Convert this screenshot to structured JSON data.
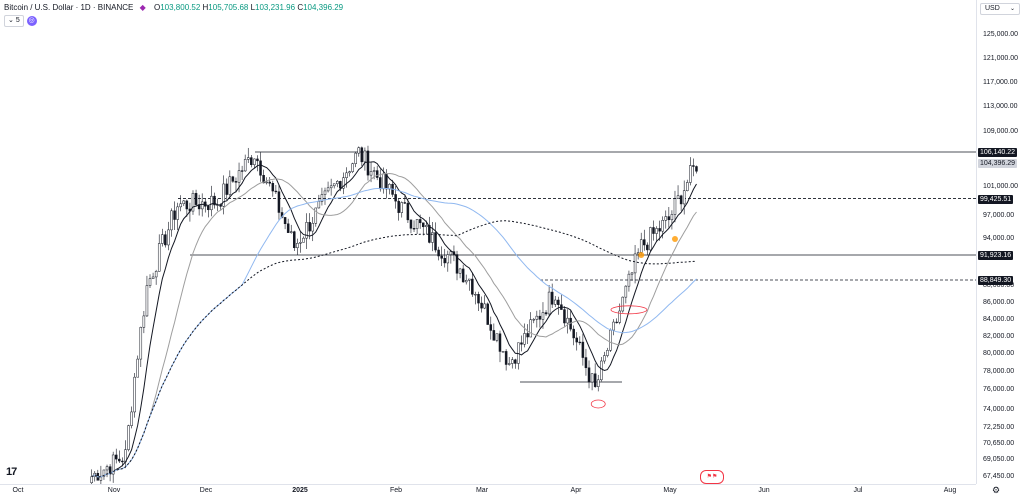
{
  "header": {
    "title": "Bitcoin / U.S. Dollar · 1D · BINANCE",
    "ohlc": [
      {
        "label": "O",
        "value": "103,800.52"
      },
      {
        "label": "H",
        "value": "105,705.68"
      },
      {
        "label": "L",
        "value": "103,231.96"
      },
      {
        "label": "C",
        "value": "104,396.29"
      }
    ],
    "indicator_count": "5"
  },
  "currency_button": "USD",
  "price_axis": {
    "labels": [
      "125,000.00",
      "121,000.00",
      "117,000.00",
      "113,000.00",
      "109,000.00",
      "101,000.00",
      "97,000.00",
      "94,000.00",
      "88,000.00",
      "86,000.00",
      "84,000.00",
      "82,000.00",
      "80,000.00",
      "78,000.00",
      "76,000.00",
      "74,000.00",
      "72,250.00",
      "70,650.00",
      "69,050.00",
      "67,450.00"
    ],
    "tags": [
      {
        "text": "106,140.22",
        "style": "dark",
        "price": 106140
      },
      {
        "text": "104,396.29",
        "style": "gray",
        "price": 104396
      },
      {
        "text": "99,425.51",
        "style": "dark",
        "price": 99425
      },
      {
        "text": "91,923.16",
        "style": "dark",
        "price": 91923
      },
      {
        "text": "88,849.30",
        "style": "dark",
        "price": 88849
      }
    ]
  },
  "time_axis": {
    "labels": [
      {
        "text": "Oct",
        "bold": false
      },
      {
        "text": "Nov",
        "bold": false
      },
      {
        "text": "Dec",
        "bold": false
      },
      {
        "text": "2025",
        "bold": true
      },
      {
        "text": "Feb",
        "bold": false
      },
      {
        "text": "Mar",
        "bold": false
      },
      {
        "text": "Apr",
        "bold": false
      },
      {
        "text": "May",
        "bold": false
      },
      {
        "text": "Jun",
        "bold": false
      },
      {
        "text": "Jul",
        "bold": false
      },
      {
        "text": "Aug",
        "bold": false
      }
    ]
  },
  "logo": "17",
  "colors": {
    "up": "#089981",
    "candle": "#131722",
    "ma_fast": "#131722",
    "ma_slow": "#9e9e9e",
    "ma_blue": "#90b8f0",
    "ma_dotted": "#131722",
    "marker": "#f23645"
  },
  "chart_data": {
    "type": "candlestick",
    "symbol": "Bitcoin / U.S. Dollar",
    "interval": "1D",
    "exchange": "BINANCE",
    "horizontal_levels": [
      106140.22,
      99425.51,
      91923.16,
      88849.3,
      77000
    ],
    "closes_approx": [
      {
        "date": "2024-10-25",
        "close": 67500
      },
      {
        "date": "2024-11-05",
        "close": 69500
      },
      {
        "date": "2024-11-12",
        "close": 88000
      },
      {
        "date": "2024-11-22",
        "close": 98500
      },
      {
        "date": "2024-12-05",
        "close": 99000
      },
      {
        "date": "2024-12-17",
        "close": 106000
      },
      {
        "date": "2024-12-30",
        "close": 93000
      },
      {
        "date": "2025-01-20",
        "close": 106000
      },
      {
        "date": "2025-02-03",
        "close": 98000
      },
      {
        "date": "2025-02-25",
        "close": 89000
      },
      {
        "date": "2025-03-10",
        "close": 79000
      },
      {
        "date": "2025-03-25",
        "close": 87500
      },
      {
        "date": "2025-04-07",
        "close": 76000
      },
      {
        "date": "2025-04-22",
        "close": 93000
      },
      {
        "date": "2025-05-01",
        "close": 96500
      },
      {
        "date": "2025-05-10",
        "close": 104396
      }
    ],
    "y_range": [
      66500,
      127000
    ]
  }
}
